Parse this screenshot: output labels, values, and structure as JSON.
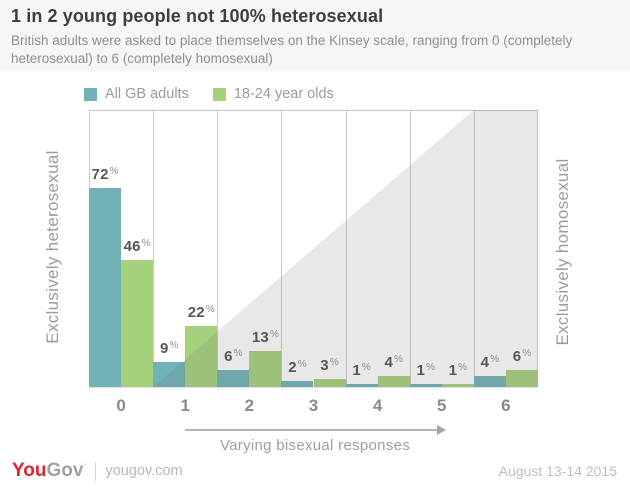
{
  "header": {
    "title": "1 in 2 young people not 100% heterosexual",
    "subtitle": "British adults were asked to place themselves on the Kinsey scale, ranging from 0 (completely heterosexual) to 6 (completely homosexual)"
  },
  "legend": {
    "items": [
      {
        "label": "All GB adults",
        "color": "#72b1b5"
      },
      {
        "label": "18-24 year olds",
        "color": "#a6d17c"
      }
    ]
  },
  "chart_data": {
    "type": "bar",
    "categories": [
      "0",
      "1",
      "2",
      "3",
      "4",
      "5",
      "6"
    ],
    "series": [
      {
        "name": "All GB adults",
        "color": "#72b1b5",
        "values": [
          72,
          9,
          6,
          2,
          1,
          1,
          4
        ]
      },
      {
        "name": "18-24 year olds",
        "color": "#a6d17c",
        "values": [
          46,
          22,
          13,
          3,
          4,
          1,
          6
        ]
      }
    ],
    "value_suffix": "%",
    "ylim": [
      0,
      100
    ],
    "grid": "vertical-column-separators",
    "left_axis_label": "Exclusively heterosexual",
    "right_axis_label": "Exclusively homosexual",
    "x_annotation": "Varying bisexual responses",
    "shaded_region": {
      "shape": "diagonal-wedge",
      "from_column_boundary": 1,
      "to_column_boundary": 6,
      "fill": "rgba(115,115,120,0.16)"
    }
  },
  "footer": {
    "logo_primary": "You",
    "logo_secondary": "Gov",
    "site": "yougov.com",
    "date": "August 13-14 2015"
  }
}
